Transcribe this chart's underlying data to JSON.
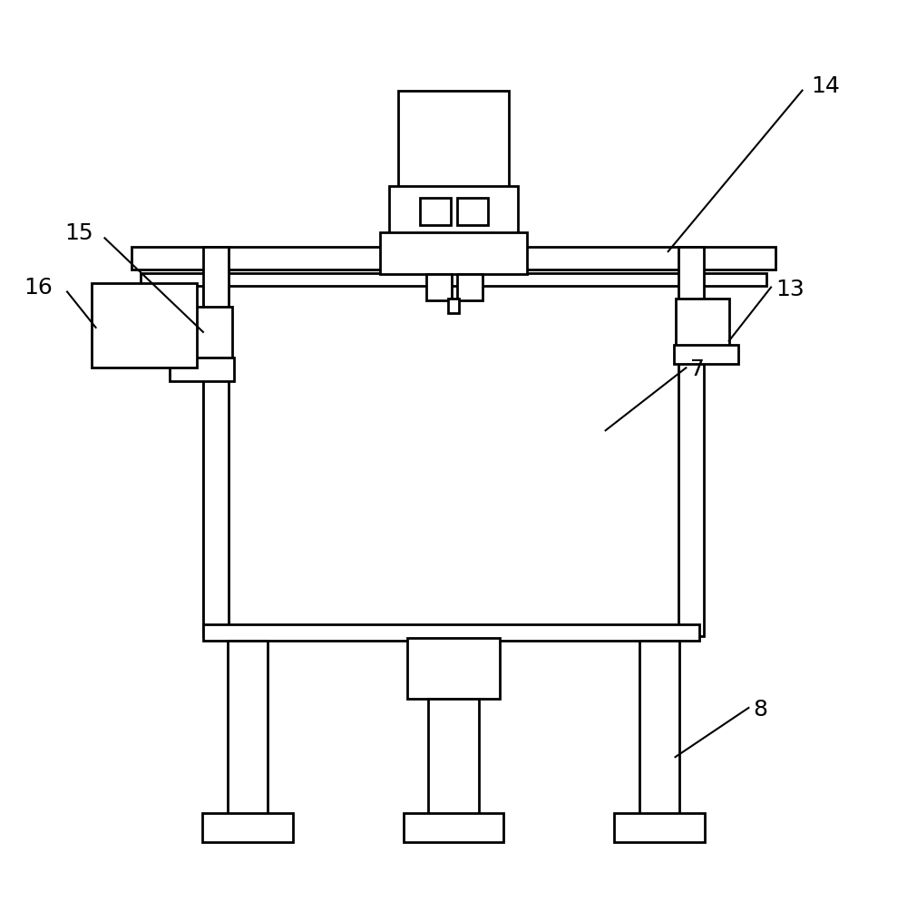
{
  "bg_color": "#ffffff",
  "line_color": "#000000",
  "line_width": 2.0,
  "fig_width": 10.0,
  "fig_height": 9.94,
  "label_fontsize": 18
}
